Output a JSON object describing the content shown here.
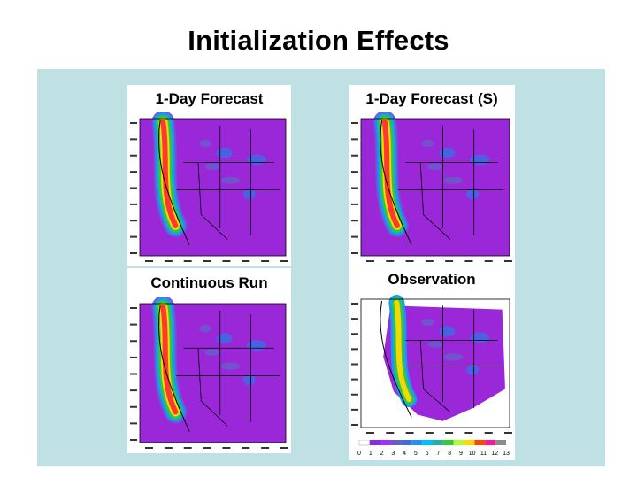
{
  "slide": {
    "title": "Initialization Effects"
  },
  "panels": [
    {
      "id": "p1",
      "label": "1-Day Forecast"
    },
    {
      "id": "p2",
      "label": "1-Day Forecast (S)"
    },
    {
      "id": "p3",
      "label": "Continuous Run"
    },
    {
      "id": "p4",
      "label": "Observation"
    }
  ],
  "colorbar": {
    "ticks": [
      "0",
      "1",
      "2",
      "3",
      "4",
      "5",
      "6",
      "7",
      "8",
      "9",
      "10",
      "11",
      "12",
      "13"
    ],
    "colors": [
      "#ffffff",
      "#8a2be2",
      "#9b30ff",
      "#6a5acd",
      "#4169e1",
      "#1e90ff",
      "#00bfff",
      "#20b2aa",
      "#32cd32",
      "#adff2f",
      "#ffd700",
      "#ff4500",
      "#ff1493",
      "#8b8b8b"
    ]
  },
  "colors": {
    "background": "#bfe1e4",
    "field_base": "#9b28d8",
    "high_precip": "#ff3030"
  }
}
